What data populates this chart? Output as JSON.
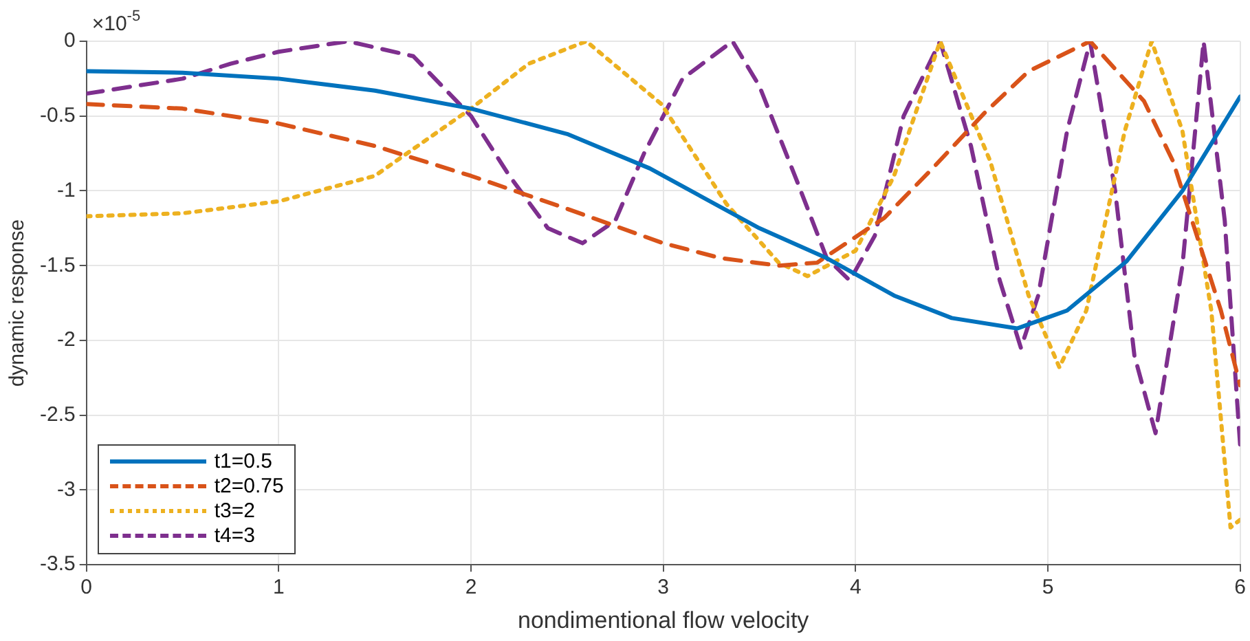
{
  "chart_data": {
    "type": "line",
    "xlabel": "nondimentional flow velocity",
    "ylabel": "dynamic response",
    "annotations": [
      "×10$^{-5}$"
    ],
    "xlim": [
      0,
      6
    ],
    "xticks": [
      0,
      1,
      2,
      3,
      4,
      5,
      6
    ],
    "ylim": [
      -3.5,
      0
    ],
    "yticks": [
      -3.5,
      -3,
      -2.5,
      -2,
      -1.5,
      -1,
      -0.5,
      0
    ],
    "grid": true,
    "legend": "bottom left",
    "marker": "none",
    "series": [
      {
        "name": "t1=0.5",
        "color": "#0072bd",
        "line_style": "solid",
        "x": [
          0,
          0.5,
          1,
          1.5,
          2,
          2.5,
          2.93,
          3.5,
          3.85,
          4.2,
          4.5,
          4.84,
          5.1,
          5.41,
          5.7,
          6
        ],
        "values": [
          -0.2,
          -0.21,
          -0.25,
          -0.33,
          -0.45,
          -0.62,
          -0.85,
          -1.25,
          -1.45,
          -1.7,
          -1.85,
          -1.92,
          -1.8,
          -1.47,
          -1.0,
          -0.37
        ]
      },
      {
        "name": "t2=0.75",
        "color": "#d95319",
        "line_style": "dashed",
        "x": [
          0,
          0.5,
          1,
          1.5,
          2,
          2.5,
          3,
          3.3,
          3.6,
          3.8,
          4.15,
          4.4,
          4.67,
          4.9,
          5.22,
          5.5,
          5.65,
          5.9,
          6
        ],
        "values": [
          -0.42,
          -0.45,
          -0.55,
          -0.7,
          -0.9,
          -1.12,
          -1.35,
          -1.45,
          -1.5,
          -1.48,
          -1.18,
          -0.85,
          -0.48,
          -0.2,
          0,
          -0.4,
          -0.8,
          -1.8,
          -2.3
        ]
      },
      {
        "name": "t3=2",
        "color": "#edb120",
        "line_style": "dotted",
        "x": [
          0,
          0.5,
          1,
          1.5,
          2,
          2.3,
          2.6,
          2.99,
          3.33,
          3.6,
          3.75,
          4.0,
          4.2,
          4.44,
          4.7,
          4.9,
          5.06,
          5.2,
          5.4,
          5.54,
          5.7,
          5.85,
          5.95,
          6
        ],
        "values": [
          -1.17,
          -1.15,
          -1.07,
          -0.9,
          -0.45,
          -0.15,
          0,
          -0.42,
          -1.09,
          -1.48,
          -1.57,
          -1.4,
          -0.9,
          0,
          -0.8,
          -1.7,
          -2.18,
          -1.8,
          -0.6,
          0,
          -0.6,
          -1.8,
          -3.25,
          -3.2
        ]
      },
      {
        "name": "t4=3",
        "color": "#7e2f8e",
        "line_style": "dashed",
        "x": [
          0,
          0.5,
          0.75,
          1,
          1.36,
          1.7,
          2,
          2.2,
          2.4,
          2.58,
          2.75,
          2.9,
          3.1,
          3.36,
          3.5,
          3.7,
          3.85,
          3.97,
          4.1,
          4.25,
          4.44,
          4.6,
          4.75,
          4.86,
          4.95,
          5.1,
          5.22,
          5.35,
          5.45,
          5.56,
          5.7,
          5.81,
          5.92,
          6
        ],
        "values": [
          -0.35,
          -0.25,
          -0.15,
          -0.07,
          0,
          -0.1,
          -0.5,
          -0.9,
          -1.25,
          -1.35,
          -1.2,
          -0.75,
          -0.25,
          0,
          -0.3,
          -0.95,
          -1.45,
          -1.6,
          -1.3,
          -0.5,
          0,
          -0.7,
          -1.6,
          -2.05,
          -1.7,
          -0.6,
          0,
          -1.0,
          -2.1,
          -2.62,
          -1.5,
          0,
          -1.2,
          -2.7
        ]
      }
    ]
  }
}
